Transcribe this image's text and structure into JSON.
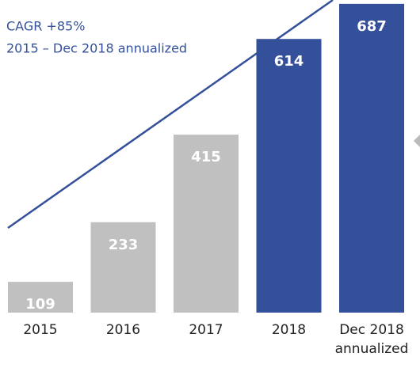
{
  "chart_data": {
    "type": "bar",
    "annotations": [
      "CAGR +85%",
      "2015 – Dec 2018 annualized"
    ],
    "categories": [
      "2015",
      "2016",
      "2017",
      "2018",
      "Dec 2018 annualized"
    ],
    "values": [
      109,
      233,
      415,
      614,
      687
    ],
    "colors": [
      "#c0c0c0",
      "#c0c0c0",
      "#c0c0c0",
      "#34509a",
      "#34509a"
    ],
    "ylim": [
      45,
      695
    ]
  }
}
